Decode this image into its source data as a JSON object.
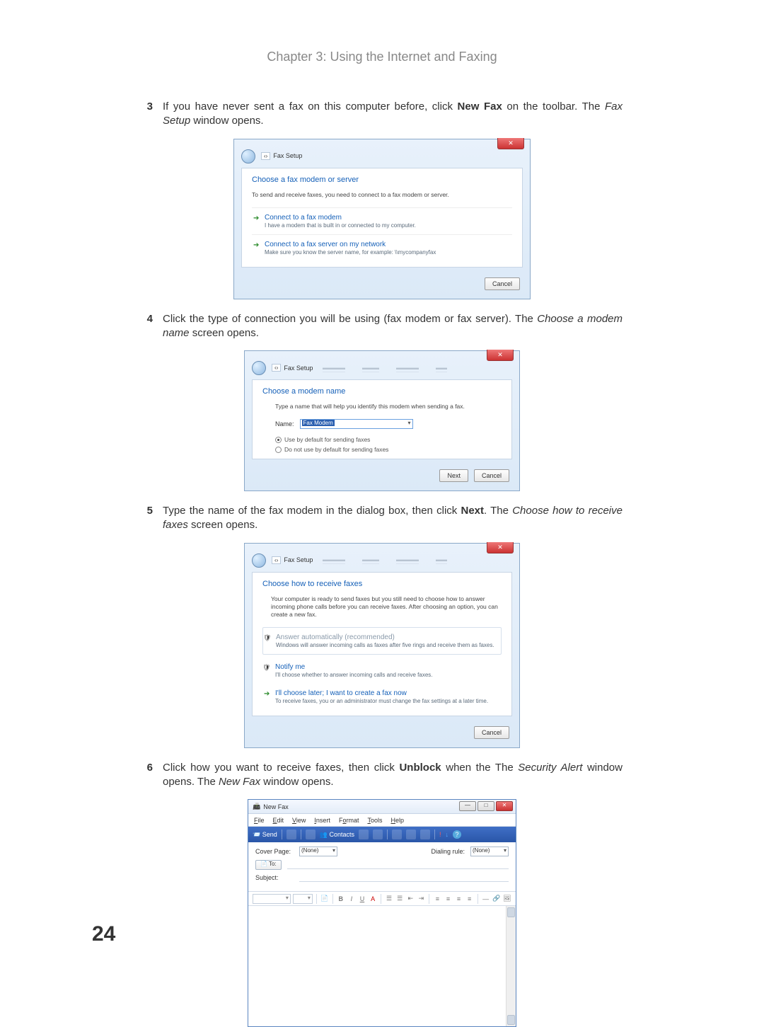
{
  "header": {
    "chapter": "Chapter 3: Using the Internet and Faxing"
  },
  "page_number": "24",
  "steps": {
    "s3": {
      "num": "3",
      "html": "If you have never sent a fax on this computer before, click <b>New Fax</b> on the toolbar. The <i>Fax Setup</i> window opens."
    },
    "s4": {
      "num": "4",
      "html": "Click the type of connection you will be using (fax modem or fax server). The <i>Choose a modem name</i> screen opens."
    },
    "s5": {
      "num": "5",
      "html": "Type the name of the fax modem in the dialog box, then click <b>Next</b>. The <i>Choose how to receive faxes</i> screen opens."
    },
    "s6": {
      "num": "6",
      "html": "Click how you want to receive faxes, then click <b>Unblock</b> when the The <i>Security Alert</i> window opens. The <i>New Fax</i> window opens."
    }
  },
  "shot1": {
    "crumb": "Fax Setup",
    "heading": "Choose a fax modem or server",
    "sub": "To send and receive faxes, you need to connect to a fax modem or server.",
    "opt1_title": "Connect to a fax modem",
    "opt1_desc": "I have a modem that is built in or connected to my computer.",
    "opt2_title": "Connect to a fax server on my network",
    "opt2_desc": "Make sure you know the server name, for example: \\\\mycompanyfax",
    "cancel": "Cancel"
  },
  "shot2": {
    "crumb": "Fax Setup",
    "heading": "Choose a modem name",
    "sub": "Type a name that will help you identify this modem when sending a fax.",
    "name_label": "Name:",
    "name_value": "Fax Modem",
    "radio1": "Use by default for sending faxes",
    "radio2": "Do not use by default for sending faxes",
    "next": "Next",
    "cancel": "Cancel"
  },
  "shot3": {
    "crumb": "Fax Setup",
    "heading": "Choose how to receive faxes",
    "sub": "Your computer is ready to send faxes but you still need to choose how to answer incoming phone calls before you can receive faxes. After choosing an option, you can create a new fax.",
    "opt1_title": "Answer automatically (recommended)",
    "opt1_desc": "Windows will answer incoming calls as faxes after five rings and receive them as faxes.",
    "opt2_title": "Notify me",
    "opt2_desc": "I'll choose whether to answer incoming calls and receive faxes.",
    "opt3_title": "I'll choose later; I want to create a fax now",
    "opt3_desc": "To receive faxes, you or an administrator must change the fax settings at a later time.",
    "cancel": "Cancel"
  },
  "shot4": {
    "title": "New Fax",
    "menu": {
      "file": "File",
      "edit": "Edit",
      "view": "View",
      "insert": "Insert",
      "format": "Format",
      "tools": "Tools",
      "help": "Help"
    },
    "toolbar": {
      "send": "Send",
      "contacts": "Contacts"
    },
    "cover_label": "Cover Page:",
    "cover_value": "(None)",
    "to_label": "To:",
    "dialing_label": "Dialing rule:",
    "dialing_value": "(None)",
    "subject_label": "Subject:",
    "fmt": {
      "bold": "B",
      "italic": "I",
      "underline": "U",
      "color": "A"
    }
  },
  "colors": {
    "header_gray": "#888888",
    "link_blue": "#1560b8",
    "toolbar_blue_top": "#3f6fc6",
    "toolbar_blue_bot": "#2a56a8",
    "close_red": "#c33333"
  }
}
